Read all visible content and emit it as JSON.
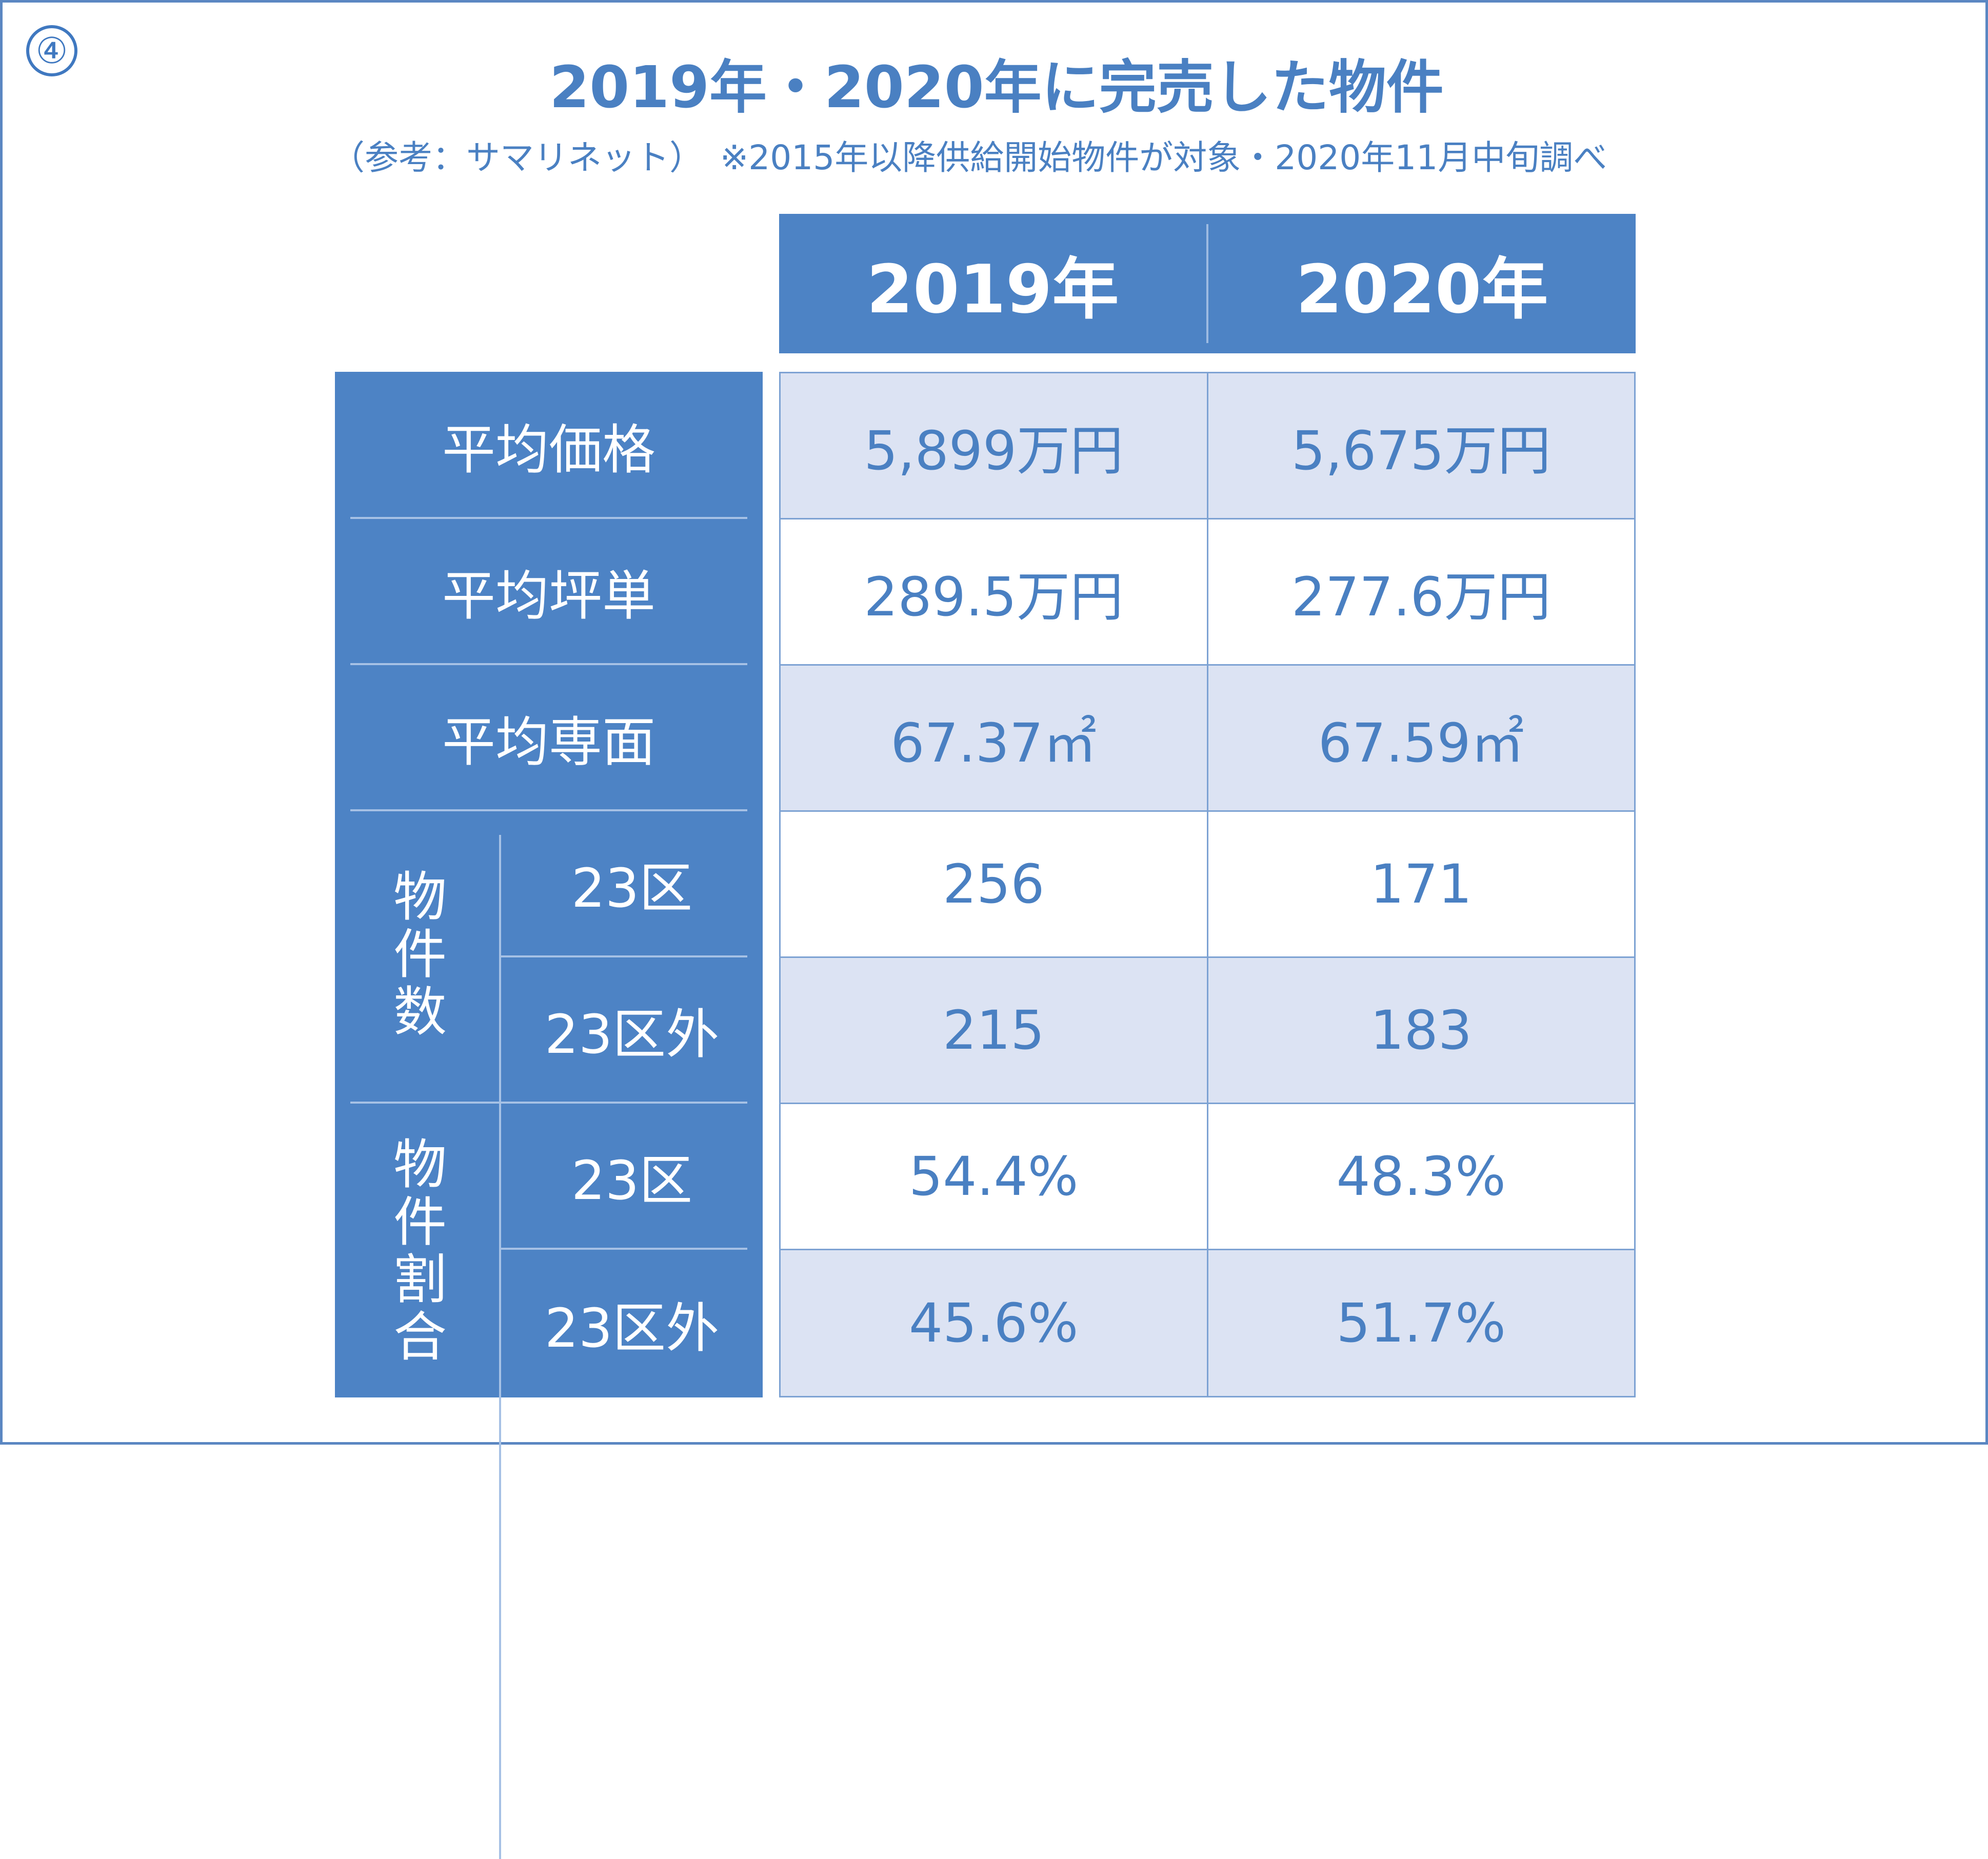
{
  "slide_number": "④",
  "title": "2019年・2020年に完売した物件",
  "subtitle": "（参考：サマリネット）　※2015年以降供給開始物件が対象・2020年11月中旬調べ",
  "colors": {
    "accent": "#4d83c5",
    "text": "#4a80c2",
    "shade": "#dce3f3"
  },
  "chart_data": {
    "type": "table",
    "columns": [
      "2019年",
      "2020年"
    ],
    "row_groups": [
      {
        "label": "平均価格",
        "rows": [
          {
            "sublabel": "",
            "values": [
              "5,899万円",
              "5,675万円"
            ]
          }
        ]
      },
      {
        "label": "平均坪単",
        "rows": [
          {
            "sublabel": "",
            "values": [
              "289.5万円",
              "277.6万円"
            ]
          }
        ]
      },
      {
        "label": "平均専面",
        "rows": [
          {
            "sublabel": "",
            "values": [
              "67.37㎡",
              "67.59㎡"
            ]
          }
        ]
      },
      {
        "label": "物件数",
        "rows": [
          {
            "sublabel": "23区",
            "values": [
              "256",
              "171"
            ]
          },
          {
            "sublabel": "23区外",
            "values": [
              "215",
              "183"
            ]
          }
        ]
      },
      {
        "label": "物件割合",
        "rows": [
          {
            "sublabel": "23区",
            "values": [
              "54.4%",
              "48.3%"
            ]
          },
          {
            "sublabel": "23区外",
            "values": [
              "45.6%",
              "51.7%"
            ]
          }
        ]
      }
    ]
  }
}
